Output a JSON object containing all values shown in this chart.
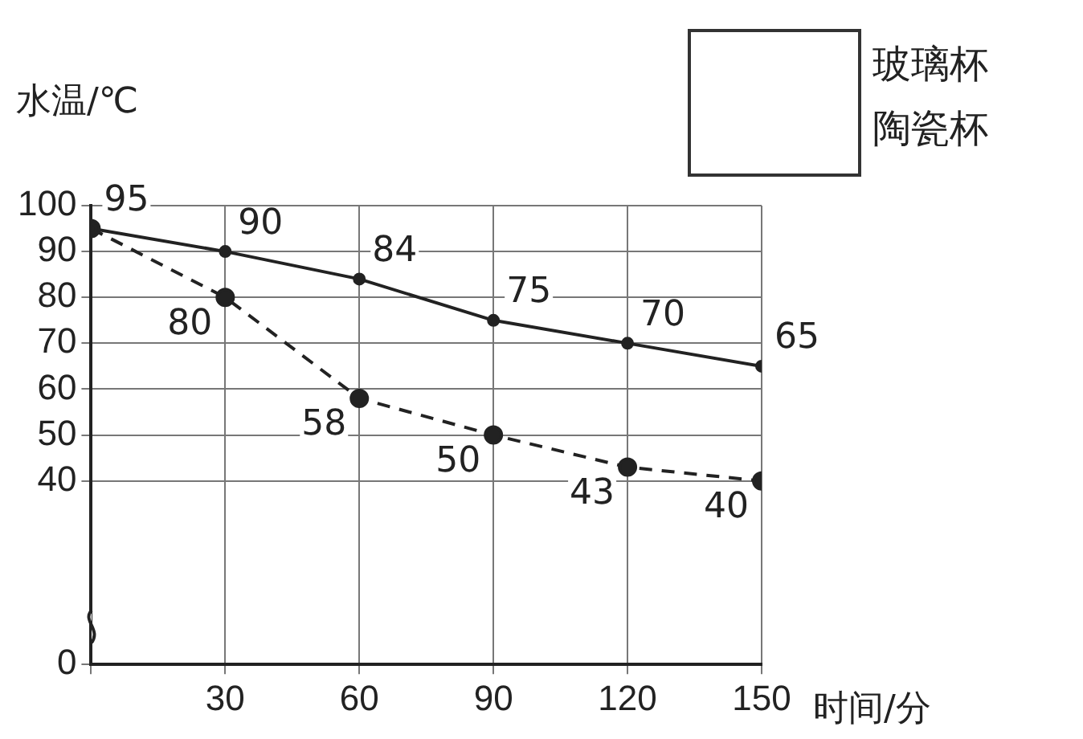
{
  "chart_data": {
    "type": "line",
    "xlabel": "时间/分",
    "ylabel": "水温/℃",
    "x": [
      0,
      30,
      60,
      90,
      120,
      150
    ],
    "series": [
      {
        "color": "#222222",
        "values": [
          95,
          90,
          84,
          75,
          70,
          65
        ],
        "line_style": "solid",
        "value_labels": [
          "95",
          "90",
          "84",
          "75",
          "70",
          "65"
        ]
      },
      {
        "color": "#222222",
        "values": [
          95,
          80,
          58,
          50,
          43,
          40
        ],
        "line_style": "dashed",
        "value_labels": [
          null,
          "80",
          "58",
          "50",
          "43",
          "40"
        ]
      }
    ],
    "xlim": [
      0,
      150
    ],
    "xticks": [
      {
        "value": 0,
        "label": null
      },
      30,
      60,
      90,
      120,
      150
    ],
    "ylim": [
      0,
      100
    ],
    "yticks": [
      0,
      40,
      50,
      60,
      70,
      80,
      90,
      100
    ],
    "grid": true,
    "marker": "circle",
    "legend": false,
    "annotations": [
      "玻璃杯",
      "陶瓷杯"
    ]
  }
}
